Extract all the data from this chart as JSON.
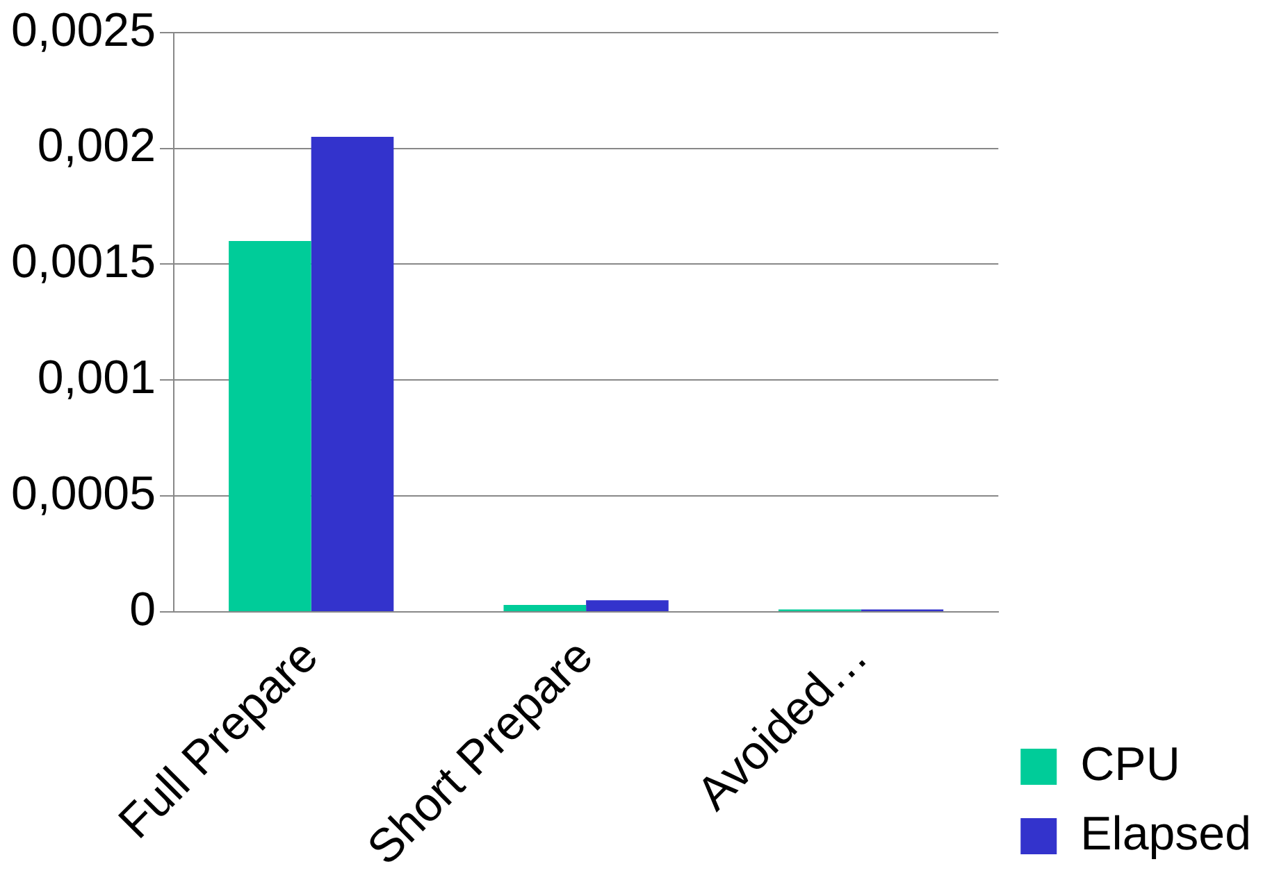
{
  "chart_data": {
    "type": "bar",
    "categories": [
      "Full Prepare",
      "Short Prepare",
      "Avoided…"
    ],
    "series": [
      {
        "name": "CPU",
        "color": "#00cc99",
        "values": [
          0.0016,
          3e-05,
          1e-05
        ]
      },
      {
        "name": "Elapsed",
        "color": "#3333cc",
        "values": [
          0.00205,
          5e-05,
          1e-05
        ]
      }
    ],
    "ylim": [
      0,
      0.0025
    ],
    "yticks": [
      0,
      {
        "value": 0.0005,
        "label": "0,0005"
      },
      {
        "value": 0.001,
        "label": "0,001"
      },
      {
        "value": 0.0015,
        "label": "0,0015"
      },
      {
        "value": 0.002,
        "label": "0,002"
      },
      {
        "value": 0.0025,
        "label": "0,0025"
      }
    ],
    "grid": "y",
    "legend": "bottom right"
  }
}
